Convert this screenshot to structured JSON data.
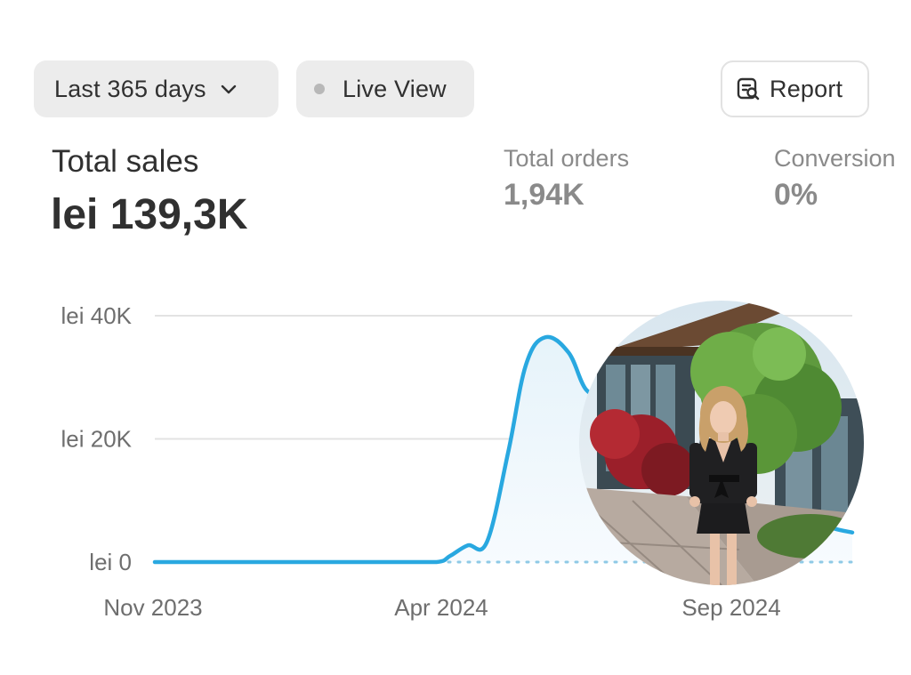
{
  "toolbar": {
    "range_label": "Last 365 days",
    "live_label": "Live View",
    "report_label": "Report"
  },
  "metrics": {
    "total_sales": {
      "label": "Total sales",
      "value": "lei 139,3K"
    },
    "total_orders": {
      "label": "Total orders",
      "value": "1,94K"
    },
    "conversion": {
      "label": "Conversion",
      "value": "0%"
    }
  },
  "colors": {
    "series_line": "#29a8e0",
    "comparison_line": "#8ec9e6",
    "grid": "#e3e3e3",
    "pill_bg": "#ececec"
  },
  "chart_data": {
    "type": "area",
    "title": "",
    "xlabel": "",
    "ylabel": "",
    "ylim": [
      0,
      40000
    ],
    "y_ticks": [
      "lei 40K",
      "lei 20K",
      "lei 0"
    ],
    "x_ticks": [
      "Nov 2023",
      "Apr 2024",
      "Sep 2024"
    ],
    "grid": true,
    "series": [
      {
        "type": "line",
        "dates": [
          "2023-11-01",
          "2023-12-01",
          "2024-01-01",
          "2024-02-01",
          "2024-03-01",
          "2024-03-25",
          "2024-04-01",
          "2024-04-10",
          "2024-04-20",
          "2024-05-01",
          "2024-05-10",
          "2024-05-20",
          "2024-06-01",
          "2024-06-10",
          "2024-06-20",
          "2024-06-25",
          "2024-07-10",
          "2024-07-20",
          "2024-08-01",
          "2024-08-15",
          "2024-09-01",
          "2024-09-15",
          "2024-10-01",
          "2024-10-15",
          "2024-10-25"
        ],
        "values": [
          0,
          0,
          0,
          0,
          0,
          0,
          1000,
          2700,
          3300,
          18000,
          32000,
          36500,
          34000,
          28000,
          27000,
          27000,
          26000,
          25000,
          22000,
          18000,
          14000,
          10000,
          7000,
          5500,
          4800
        ]
      },
      {
        "type": "dotted",
        "dates": [
          "2023-11-01",
          "2024-03-25",
          "2024-10-25"
        ],
        "values": [
          0,
          0,
          0
        ]
      }
    ]
  }
}
